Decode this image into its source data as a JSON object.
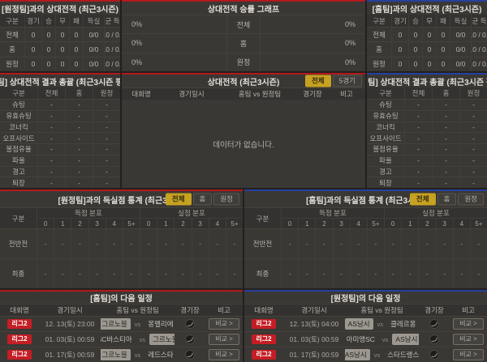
{
  "theme": {
    "home_accent_red": "#b3191c",
    "away_accent_blue": "#27409e",
    "active_tab_yellow": "#c7a120",
    "league_badge_red": "#c41e24",
    "panel_bg": "#3a3835"
  },
  "h2h_vs_away": {
    "title": "[원정팀]과의 상대전적 (최근3시즌)",
    "columns": [
      "구분",
      "경기",
      "승",
      "무",
      "패",
      "득실",
      "평균 득실"
    ],
    "rows": [
      {
        "label": "전체",
        "values": [
          "0",
          "0",
          "0",
          "0",
          "0/0",
          "0.0 / 0.0"
        ]
      },
      {
        "label": "홈",
        "values": [
          "0",
          "0",
          "0",
          "0",
          "0/0",
          "0.0 / 0.0"
        ]
      },
      {
        "label": "원정",
        "values": [
          "0",
          "0",
          "0",
          "0",
          "0/0",
          "0.0 / 0.0"
        ]
      }
    ]
  },
  "winrate_graph": {
    "title": "상대전적 승률 그래프",
    "rows": [
      {
        "label": "전체",
        "left": "0%",
        "right": "0%"
      },
      {
        "label": "홈",
        "left": "0%",
        "right": "0%"
      },
      {
        "label": "원정",
        "left": "0%",
        "right": "0%"
      }
    ]
  },
  "h2h_vs_home": {
    "title": "[홈팀]과의 상대전적 (최근3시즌)",
    "columns": [
      "구분",
      "경기",
      "승",
      "무",
      "패",
      "득실",
      "평균 득실"
    ],
    "rows": [
      {
        "label": "전체",
        "values": [
          "0",
          "0",
          "0",
          "0",
          "0/0",
          "0.0 / 0.0"
        ]
      },
      {
        "label": "홈",
        "values": [
          "0",
          "0",
          "0",
          "0",
          "0/0",
          "0.0 / 0.0"
        ]
      },
      {
        "label": "원정",
        "values": [
          "0",
          "0",
          "0",
          "0",
          "0/0",
          "0.0 / 0.0"
        ]
      }
    ]
  },
  "stats_home": {
    "title": "[홈팀] 상대전적 결과 총괄 (최근3시즌 평균)",
    "columns": [
      "구분",
      "전체",
      "홈",
      "원정"
    ],
    "rows": [
      {
        "label": "슈팅",
        "values": [
          "-",
          "-",
          "-"
        ]
      },
      {
        "label": "유효슈팅",
        "values": [
          "-",
          "-",
          "-"
        ]
      },
      {
        "label": "코너킥",
        "values": [
          "-",
          "-",
          "-"
        ]
      },
      {
        "label": "오프사이드",
        "values": [
          "-",
          "-",
          "-"
        ]
      },
      {
        "label": "볼점유율",
        "values": [
          "-",
          "-",
          "-"
        ]
      },
      {
        "label": "파울",
        "values": [
          "-",
          "-",
          "-"
        ]
      },
      {
        "label": "경고",
        "values": [
          "-",
          "-",
          "-"
        ]
      },
      {
        "label": "퇴장",
        "values": [
          "-",
          "-",
          "-"
        ]
      }
    ]
  },
  "h2h_list": {
    "title": "상대전적 (최근3시즌)",
    "tabs": [
      "전체",
      "5경기"
    ],
    "columns": [
      "대회명",
      "경기일시",
      "홈팀  vs  원정팀",
      "경기장",
      "비고"
    ],
    "empty": "데이터가 없습니다.",
    "vs_label": "vs",
    "compare_label": "비교 >",
    "rows": []
  },
  "stats_away": {
    "title": "[원정팀] 상대전적 결과 총괄 (최근3시즌 평균)",
    "columns": [
      "구분",
      "전체",
      "홈",
      "원정"
    ],
    "rows": [
      {
        "label": "슈팅",
        "values": [
          "-",
          "-",
          "-"
        ]
      },
      {
        "label": "유효슈팅",
        "values": [
          "-",
          "-",
          "-"
        ]
      },
      {
        "label": "코너킥",
        "values": [
          "-",
          "-",
          "-"
        ]
      },
      {
        "label": "오프사이드",
        "values": [
          "-",
          "-",
          "-"
        ]
      },
      {
        "label": "볼점유율",
        "values": [
          "-",
          "-",
          "-"
        ]
      },
      {
        "label": "파울",
        "values": [
          "-",
          "-",
          "-"
        ]
      },
      {
        "label": "경고",
        "values": [
          "-",
          "-",
          "-"
        ]
      },
      {
        "label": "퇴장",
        "values": [
          "-",
          "-",
          "-"
        ]
      }
    ]
  },
  "goals_vs_away": {
    "title": "[원정팀]과의 득실점 통계 (최근3시즌)",
    "tabs": [
      "전체",
      "홈",
      "원정"
    ],
    "corner": "구분",
    "groups": [
      "득점 분포",
      "실점 분포"
    ],
    "bins": [
      "0",
      "1",
      "2",
      "3",
      "4",
      "5+"
    ],
    "rows": [
      {
        "label": "전반전",
        "score": [
          "-",
          "-",
          "-",
          "-",
          "-",
          "-"
        ],
        "concede": [
          "-",
          "-",
          "-",
          "-",
          "-",
          "-"
        ]
      },
      {
        "label": "최종",
        "score": [
          "-",
          "-",
          "-",
          "-",
          "-",
          "-"
        ],
        "concede": [
          "-",
          "-",
          "-",
          "-",
          "-",
          "-"
        ]
      }
    ]
  },
  "goals_vs_home": {
    "title": "[홈팀]과의 득실점 통계 (최근3시즌)",
    "tabs": [
      "전체",
      "홈",
      "원정"
    ],
    "corner": "구분",
    "groups": [
      "득점 분포",
      "실점 분포"
    ],
    "bins": [
      "0",
      "1",
      "2",
      "3",
      "4",
      "5+"
    ],
    "rows": [
      {
        "label": "전반전",
        "score": [
          "-",
          "-",
          "-",
          "-",
          "-",
          "-"
        ],
        "concede": [
          "-",
          "-",
          "-",
          "-",
          "-",
          "-"
        ]
      },
      {
        "label": "최종",
        "score": [
          "-",
          "-",
          "-",
          "-",
          "-",
          "-"
        ],
        "concede": [
          "-",
          "-",
          "-",
          "-",
          "-",
          "-"
        ]
      }
    ]
  },
  "schedule_home": {
    "title": "[홈팀]의 다음 일정",
    "columns": [
      "대회명",
      "경기일시",
      "홈팀  vs  원정팀",
      "경기장",
      "비고"
    ],
    "vs_label": "vs",
    "compare_label": "비교 >",
    "rows": [
      {
        "league": "리그2",
        "datetime": "12. 13(토) 23:00",
        "home": "그르노블",
        "away": "몽펠리에",
        "highlight": "home"
      },
      {
        "league": "리그2",
        "datetime": "01. 03(토) 00:59",
        "home": "SC바스티아",
        "away": "그르노블",
        "highlight": "away"
      },
      {
        "league": "리그2",
        "datetime": "01. 17(토) 00:59",
        "home": "그르노블",
        "away": "레드스타",
        "highlight": "home"
      }
    ]
  },
  "schedule_away": {
    "title": "[원정팀]의 다음 일정",
    "columns": [
      "대회명",
      "경기일시",
      "홈팀  vs  원정팀",
      "경기장",
      "비고"
    ],
    "vs_label": "vs",
    "compare_label": "비교 >",
    "rows": [
      {
        "league": "리그2",
        "datetime": "12. 13(토) 04:00",
        "home": "AS낭시",
        "away": "클레르몽",
        "highlight": "home"
      },
      {
        "league": "리그2",
        "datetime": "01. 03(토) 00:59",
        "home": "아미앵SC",
        "away": "AS낭시",
        "highlight": "away"
      },
      {
        "league": "리그2",
        "datetime": "01. 17(토) 00:59",
        "home": "AS낭시",
        "away": "스타드랭스",
        "highlight": "home"
      }
    ]
  }
}
